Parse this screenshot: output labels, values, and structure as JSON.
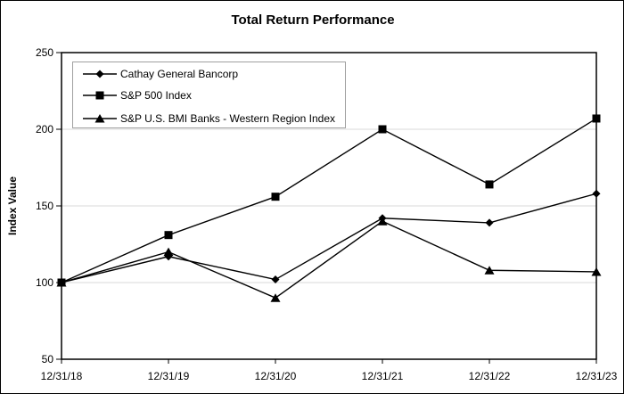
{
  "title": "Total Return Performance",
  "chart_data": {
    "type": "line",
    "title": "Total Return Performance",
    "xlabel": "",
    "ylabel": "Index Value",
    "x": [
      "12/31/18",
      "12/31/19",
      "12/31/20",
      "12/31/21",
      "12/31/22",
      "12/31/23"
    ],
    "series": [
      {
        "name": "Cathay General Bancorp",
        "marker": "diamond",
        "values": [
          100,
          117,
          102,
          142,
          139,
          158
        ]
      },
      {
        "name": "S&P 500 Index",
        "marker": "square",
        "values": [
          100,
          131,
          156,
          200,
          164,
          207
        ]
      },
      {
        "name": "S&P U.S. BMI Banks - Western Region Index",
        "marker": "triangle",
        "values": [
          100,
          120,
          90,
          140,
          108,
          107
        ]
      }
    ],
    "ylim": [
      50,
      250
    ],
    "y_ticks": [
      250,
      200,
      150,
      100,
      50
    ],
    "gridline_values": [
      100,
      150,
      200
    ],
    "grid": "horizontal",
    "legend_position": "top-left",
    "colors": {
      "series": "#000000",
      "grid": "#d9d9d9",
      "background": "#ffffff",
      "plot_border": "#000000",
      "legend_border": "#a0a0a0"
    }
  }
}
